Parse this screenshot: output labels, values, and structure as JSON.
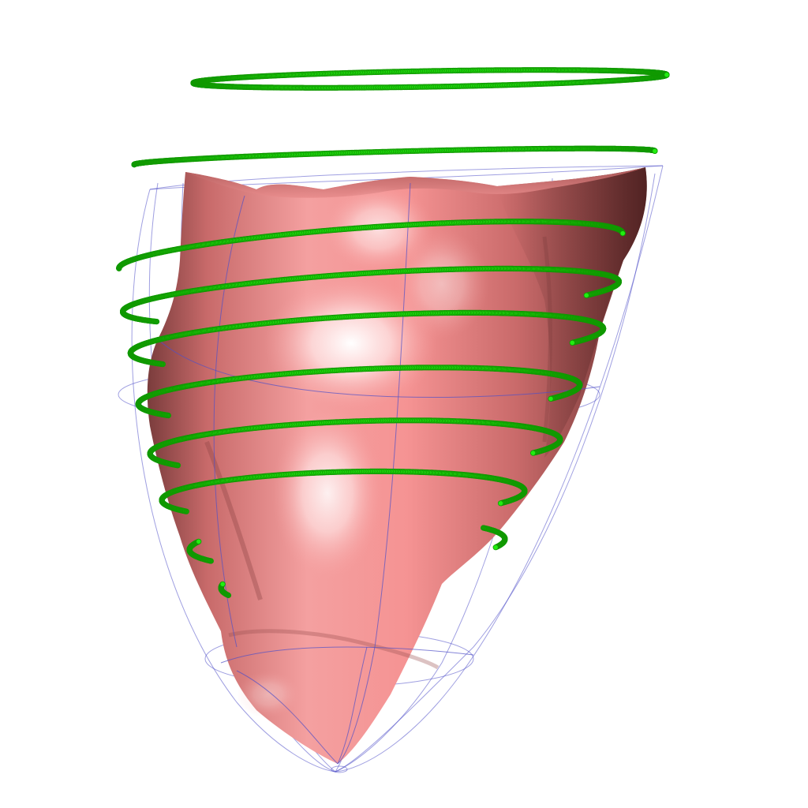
{
  "scene": {
    "background_color": "#ffffff",
    "surface_color": "#f08080",
    "surface_highlight_color": "#ffffff",
    "surface_shadow_color": "#6e3535",
    "wireframe_color": "#5050c8",
    "contour_point_color": "#22ee11",
    "contour_point_edge_color": "#119900",
    "objects": [
      "heart-ventricle-surface",
      "ventricle-wireframe-mesh",
      "contour-point-rings"
    ]
  }
}
